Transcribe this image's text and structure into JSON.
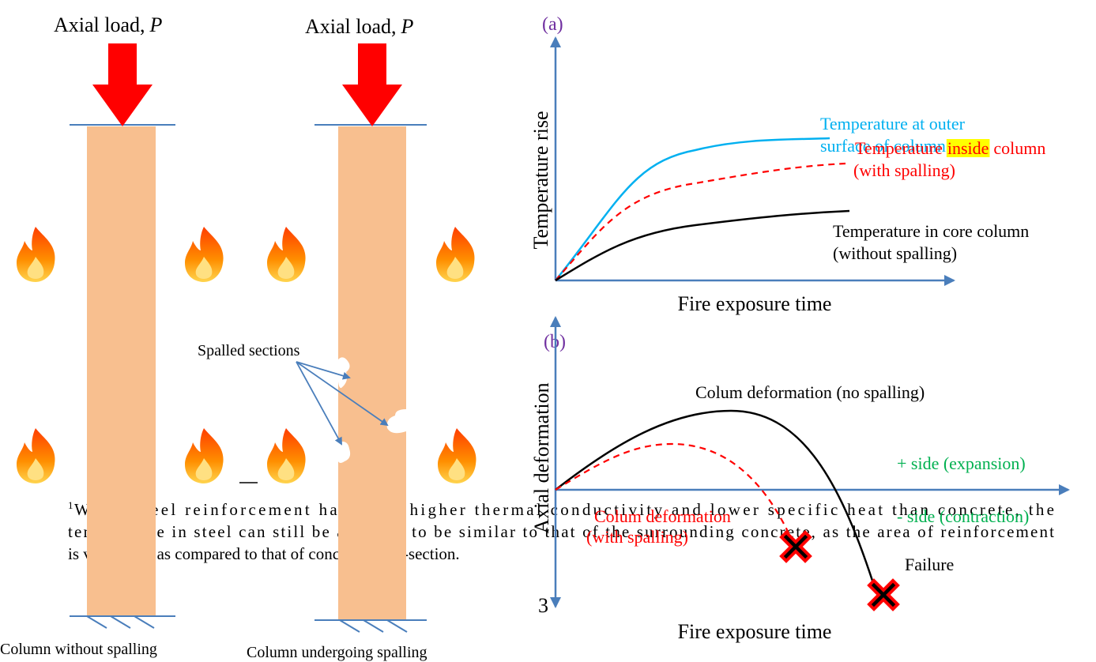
{
  "left": {
    "column1": {
      "load_label": "Axial load,",
      "load_symbol": "P",
      "caption": "Column without spalling"
    },
    "column2": {
      "load_label": "Axial load,",
      "load_symbol": "P",
      "caption": "Column undergoing spalling",
      "spalled_label": "Spalled sections"
    },
    "footnote": {
      "mark": "1",
      "lines": [
        "While steel reinforcement has much higher thermal conductivity and lower specific heat than concrete, the",
        "temperature in steel can still be assumed to be similar to that of the surrounding concrete, as the area of reinforcement",
        "is very small as compared to that of concrete cross-section."
      ]
    }
  },
  "panel_a": {
    "tag": "(a)",
    "y_label": "Temperature rise",
    "x_label": "Fire exposure time",
    "outer": [
      "Temperature at outer",
      "surface of column"
    ],
    "inside": {
      "before": "Temperature",
      "highlight": "inside",
      "after": "column",
      "line2": "(with spalling)"
    },
    "core": [
      "Temperature in core column",
      "(without spalling)"
    ]
  },
  "panel_b": {
    "tag": "(b)",
    "y_label": "Axial deformation",
    "x_label": "Fire exposure time",
    "axis_number": "3",
    "no_spalling": "Colum deformation (no spalling)",
    "with_spalling": [
      "Colum deformation",
      "(with spalling)"
    ],
    "positive": "+ side (expansion)",
    "negative": "- side (contraction)",
    "failure": "Failure"
  }
}
